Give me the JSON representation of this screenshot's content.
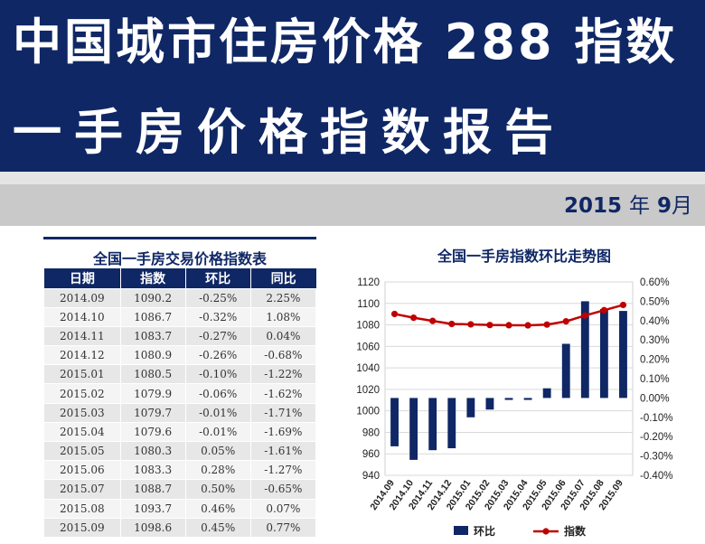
{
  "header": {
    "title_line1": "中国城市住房价格 288 指数",
    "title_line2": "一手房价格指数报告",
    "date_year": "2015",
    "date_year_unit": "年",
    "date_month": "9",
    "date_month_unit": "月"
  },
  "table": {
    "title": "全国一手房交易价格指数表",
    "columns": [
      "日期",
      "指数",
      "环比",
      "同比"
    ],
    "rows": [
      [
        "2014.09",
        "1090.2",
        "-0.25%",
        "2.25%"
      ],
      [
        "2014.10",
        "1086.7",
        "-0.32%",
        "1.08%"
      ],
      [
        "2014.11",
        "1083.7",
        "-0.27%",
        "0.04%"
      ],
      [
        "2014.12",
        "1080.9",
        "-0.26%",
        "-0.68%"
      ],
      [
        "2015.01",
        "1080.5",
        "-0.10%",
        "-1.22%"
      ],
      [
        "2015.02",
        "1079.9",
        "-0.06%",
        "-1.62%"
      ],
      [
        "2015.03",
        "1079.7",
        "-0.01%",
        "-1.71%"
      ],
      [
        "2015.04",
        "1079.6",
        "-0.01%",
        "-1.69%"
      ],
      [
        "2015.05",
        "1080.3",
        "0.05%",
        "-1.61%"
      ],
      [
        "2015.06",
        "1083.3",
        "0.28%",
        "-1.27%"
      ],
      [
        "2015.07",
        "1088.7",
        "0.50%",
        "-0.65%"
      ],
      [
        "2015.08",
        "1093.7",
        "0.46%",
        "0.07%"
      ],
      [
        "2015.09",
        "1098.6",
        "0.45%",
        "0.77%"
      ]
    ]
  },
  "chart_data": {
    "type": "bar+line",
    "title": "全国一手房指数环比走势图",
    "categories": [
      "2014.09",
      "2014.10",
      "2014.11",
      "2014.12",
      "2015.01",
      "2015.02",
      "2015.03",
      "2015.04",
      "2015.05",
      "2015.06",
      "2015.07",
      "2015.08",
      "2015.09"
    ],
    "series": [
      {
        "name": "环比",
        "type": "bar",
        "axis": "right",
        "color": "#0f2765",
        "values": [
          -0.25,
          -0.32,
          -0.27,
          -0.26,
          -0.1,
          -0.06,
          -0.01,
          -0.01,
          0.05,
          0.28,
          0.5,
          0.46,
          0.45
        ]
      },
      {
        "name": "指数",
        "type": "line",
        "axis": "left",
        "color": "#c00000",
        "values": [
          1090.2,
          1086.7,
          1083.7,
          1080.9,
          1080.5,
          1079.9,
          1079.7,
          1079.6,
          1080.3,
          1083.3,
          1088.7,
          1093.7,
          1098.6
        ]
      }
    ],
    "left_axis": {
      "min": 940,
      "max": 1120,
      "ticks": [
        "1120",
        "1100",
        "1080",
        "1060",
        "1040",
        "1020",
        "1000",
        "980",
        "960",
        "940"
      ]
    },
    "right_axis": {
      "min": -0.4,
      "max": 0.6,
      "ticks": [
        "0.60%",
        "0.50%",
        "0.40%",
        "0.30%",
        "0.20%",
        "0.10%",
        "0.00%",
        "-0.10%",
        "-0.20%",
        "-0.30%",
        "-0.40%"
      ]
    },
    "grid": "horizontal",
    "legend_placement": "bottom"
  }
}
